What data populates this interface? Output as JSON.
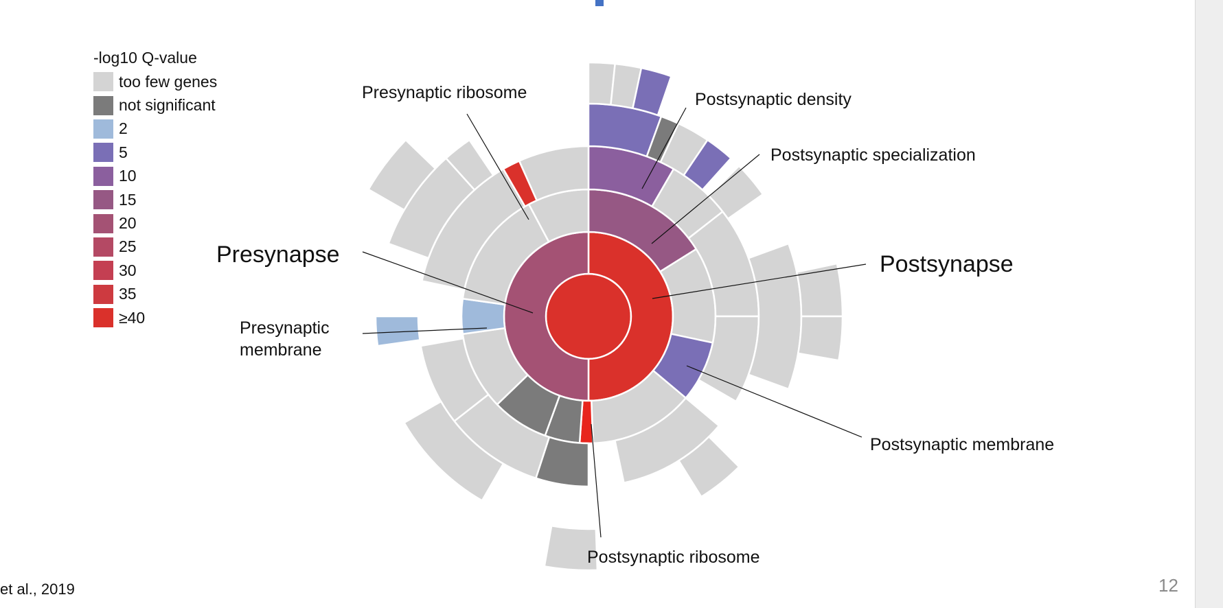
{
  "legend": {
    "title": "-log10 Q-value",
    "items": [
      {
        "label": "too few genes",
        "color": "#d4d4d4"
      },
      {
        "label": "not significant",
        "color": "#7b7b7b"
      },
      {
        "label": "2",
        "color": "#9fbadb"
      },
      {
        "label": "5",
        "color": "#7a6fb6"
      },
      {
        "label": "10",
        "color": "#8b5f9e"
      },
      {
        "label": "15",
        "color": "#965884"
      },
      {
        "label": "20",
        "color": "#a45274"
      },
      {
        "label": "25",
        "color": "#b44964"
      },
      {
        "label": "30",
        "color": "#c43f52"
      },
      {
        "label": "35",
        "color": "#cd3a40"
      },
      {
        "label": "≥40",
        "color": "#da312b"
      }
    ]
  },
  "labels": {
    "presynapse": "Presynapse",
    "postsynapse": "Postsynapse",
    "presynaptic_ribosome": "Presynaptic ribosome",
    "postsynaptic_density": "Postsynaptic density",
    "postsynaptic_specialization": "Postsynaptic specialization",
    "presynaptic_membrane_line1": "Presynaptic",
    "presynaptic_membrane_line2": "membrane",
    "postsynaptic_membrane": "Postsynaptic membrane",
    "postsynaptic_ribosome": "Postsynaptic ribosome"
  },
  "citation": "et al., 2019",
  "page_number": "12"
}
